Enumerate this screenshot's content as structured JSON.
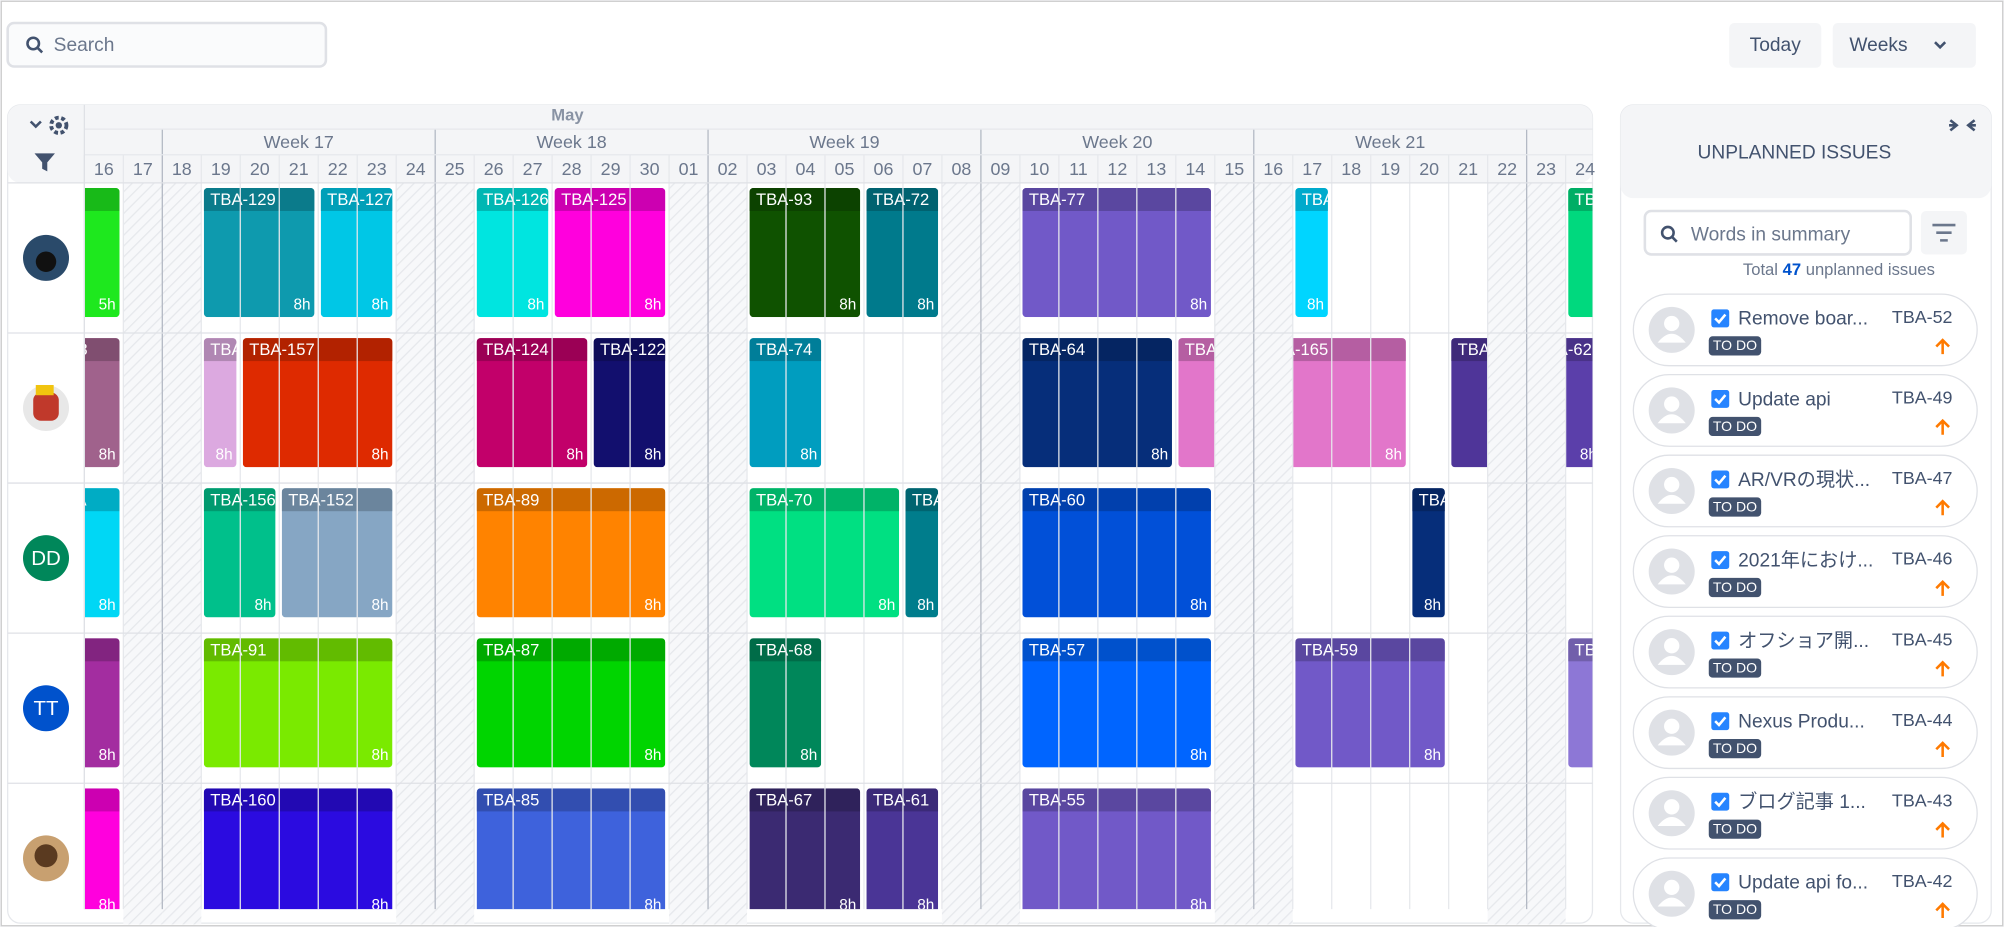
{
  "header": {
    "search_placeholder": "Search",
    "today": "Today",
    "view": "Weeks"
  },
  "timeline": {
    "month": "May",
    "weeks": [
      "Week 17",
      "Week 18",
      "Week 19",
      "Week 20",
      "Week 21"
    ],
    "days": [
      "16",
      "17",
      "18",
      "19",
      "20",
      "21",
      "22",
      "23",
      "24",
      "25",
      "26",
      "27",
      "28",
      "29",
      "30",
      "01",
      "02",
      "03",
      "04",
      "05",
      "06",
      "07",
      "08",
      "09",
      "10",
      "11",
      "12",
      "13",
      "14",
      "15",
      "16",
      "17",
      "18",
      "19",
      "20",
      "21",
      "22",
      "23",
      "24"
    ]
  },
  "rows": [
    {
      "bars": [
        {
          "hours": "5h",
          "color": "#1ee81e"
        },
        {
          "key": "TBA-129",
          "hours": "8h",
          "color": "#0e9aae"
        },
        {
          "key": "TBA-127",
          "hours": "8h",
          "color": "#00c7e6"
        },
        {
          "key": "TBA-126",
          "hours": "8h",
          "color": "#00e5e0"
        },
        {
          "key": "TBA-125",
          "hours": "8h",
          "color": "#ff00dd"
        },
        {
          "key": "TBA-93",
          "hours": "8h",
          "color": "#0f5200"
        },
        {
          "key": "TBA-72",
          "hours": "8h",
          "color": "#007a8c"
        },
        {
          "key": "TBA-77",
          "hours": "8h",
          "color": "#7159c8"
        },
        {
          "key": "TBA",
          "hours": "8h",
          "color": "#00d5ff"
        },
        {
          "key": "TB",
          "color": "#00d97e"
        }
      ]
    },
    {
      "bars": [
        {
          "key": "-128",
          "hours": "8h",
          "color": "#a0628c"
        },
        {
          "key": "TBA",
          "hours": "8h",
          "color": "#dca9e0"
        },
        {
          "key": "TBA-157",
          "hours": "8h",
          "color": "#de2a00"
        },
        {
          "key": "TBA-124",
          "hours": "8h",
          "color": "#c2006a"
        },
        {
          "key": "TBA-122",
          "hours": "8h",
          "color": "#120f6e"
        },
        {
          "key": "TBA-74",
          "hours": "8h",
          "color": "#009dbf"
        },
        {
          "key": "TBA-64",
          "hours": "8h",
          "color": "#062e7a"
        },
        {
          "key": "TBA-165",
          "hours": "8h",
          "color": "#e276ca"
        },
        {
          "key": "TBA-165",
          "hours": "8h",
          "color": "#e276ca"
        },
        {
          "key": "TBA-62",
          "hours": "8h",
          "color": "#4f3599"
        },
        {
          "key": "TBA-62",
          "hours": "8h",
          "color": "#5b3faa"
        }
      ]
    },
    {
      "avatar_text": "DD",
      "bars": [
        {
          "key": "TBA",
          "hours": "8h",
          "color": "#00d7f5"
        },
        {
          "key": "TBA-156",
          "hours": "8h",
          "color": "#00c08b"
        },
        {
          "key": "TBA-152",
          "hours": "8h",
          "color": "#86a6c4"
        },
        {
          "key": "TBA-89",
          "hours": "8h",
          "color": "#ff8300"
        },
        {
          "key": "TBA-70",
          "hours": "8h",
          "color": "#00e082"
        },
        {
          "key": "TBA",
          "hours": "8h",
          "color": "#007d8c"
        },
        {
          "key": "TBA-60",
          "hours": "8h",
          "color": "#0150d8"
        },
        {
          "key": "TBA",
          "hours": "8h",
          "color": "#062e7a"
        }
      ]
    },
    {
      "avatar_text": "TT",
      "bars": [
        {
          "key": "-94",
          "hours": "8h",
          "color": "#a32da0"
        },
        {
          "key": "TBA-91",
          "hours": "8h",
          "color": "#7aea00"
        },
        {
          "key": "TBA-87",
          "hours": "8h",
          "color": "#00d500"
        },
        {
          "key": "TBA-68",
          "hours": "8h",
          "color": "#00875a"
        },
        {
          "key": "TBA-57",
          "hours": "8h",
          "color": "#0065ff"
        },
        {
          "key": "TBA-59",
          "hours": "8h",
          "color": "#7159c8"
        },
        {
          "key": "TB",
          "hours": "8h",
          "color": "#8d77d6"
        }
      ]
    },
    {
      "bars": [
        {
          "key": "-90",
          "hours": "8h",
          "color": "#ff00dd"
        },
        {
          "key": "TBA-160",
          "hours": "8h",
          "color": "#2b0be0"
        },
        {
          "key": "TBA-85",
          "hours": "8h",
          "color": "#3e62dc"
        },
        {
          "key": "TBA-67",
          "hours": "8h",
          "color": "#3b2a72"
        },
        {
          "key": "TBA-61",
          "hours": "8h",
          "color": "#4a3596"
        },
        {
          "key": "TBA-55",
          "hours": "8h",
          "color": "#7159c8"
        }
      ]
    }
  ],
  "panel": {
    "title": "UNPLANNED ISSUES",
    "search_placeholder": "Words in summary",
    "total_prefix": "Total",
    "total": 47,
    "total_suffix": "unplanned issues",
    "issues": [
      {
        "summary": "Remove boar...",
        "status": "TO DO",
        "key": "TBA-52"
      },
      {
        "summary": "Update api",
        "status": "TO DO",
        "key": "TBA-49"
      },
      {
        "summary": "AR/VRの現状...",
        "status": "TO DO",
        "key": "TBA-47"
      },
      {
        "summary": "2021年におけ...",
        "status": "TO DO",
        "key": "TBA-46"
      },
      {
        "summary": "オフショア開...",
        "status": "TO DO",
        "key": "TBA-45"
      },
      {
        "summary": "Nexus Produ...",
        "status": "TO DO",
        "key": "TBA-44"
      },
      {
        "summary": "ブログ記事 1...",
        "status": "TO DO",
        "key": "TBA-43"
      },
      {
        "summary": "Update api fo...",
        "status": "TO DO",
        "key": "TBA-42"
      }
    ]
  }
}
